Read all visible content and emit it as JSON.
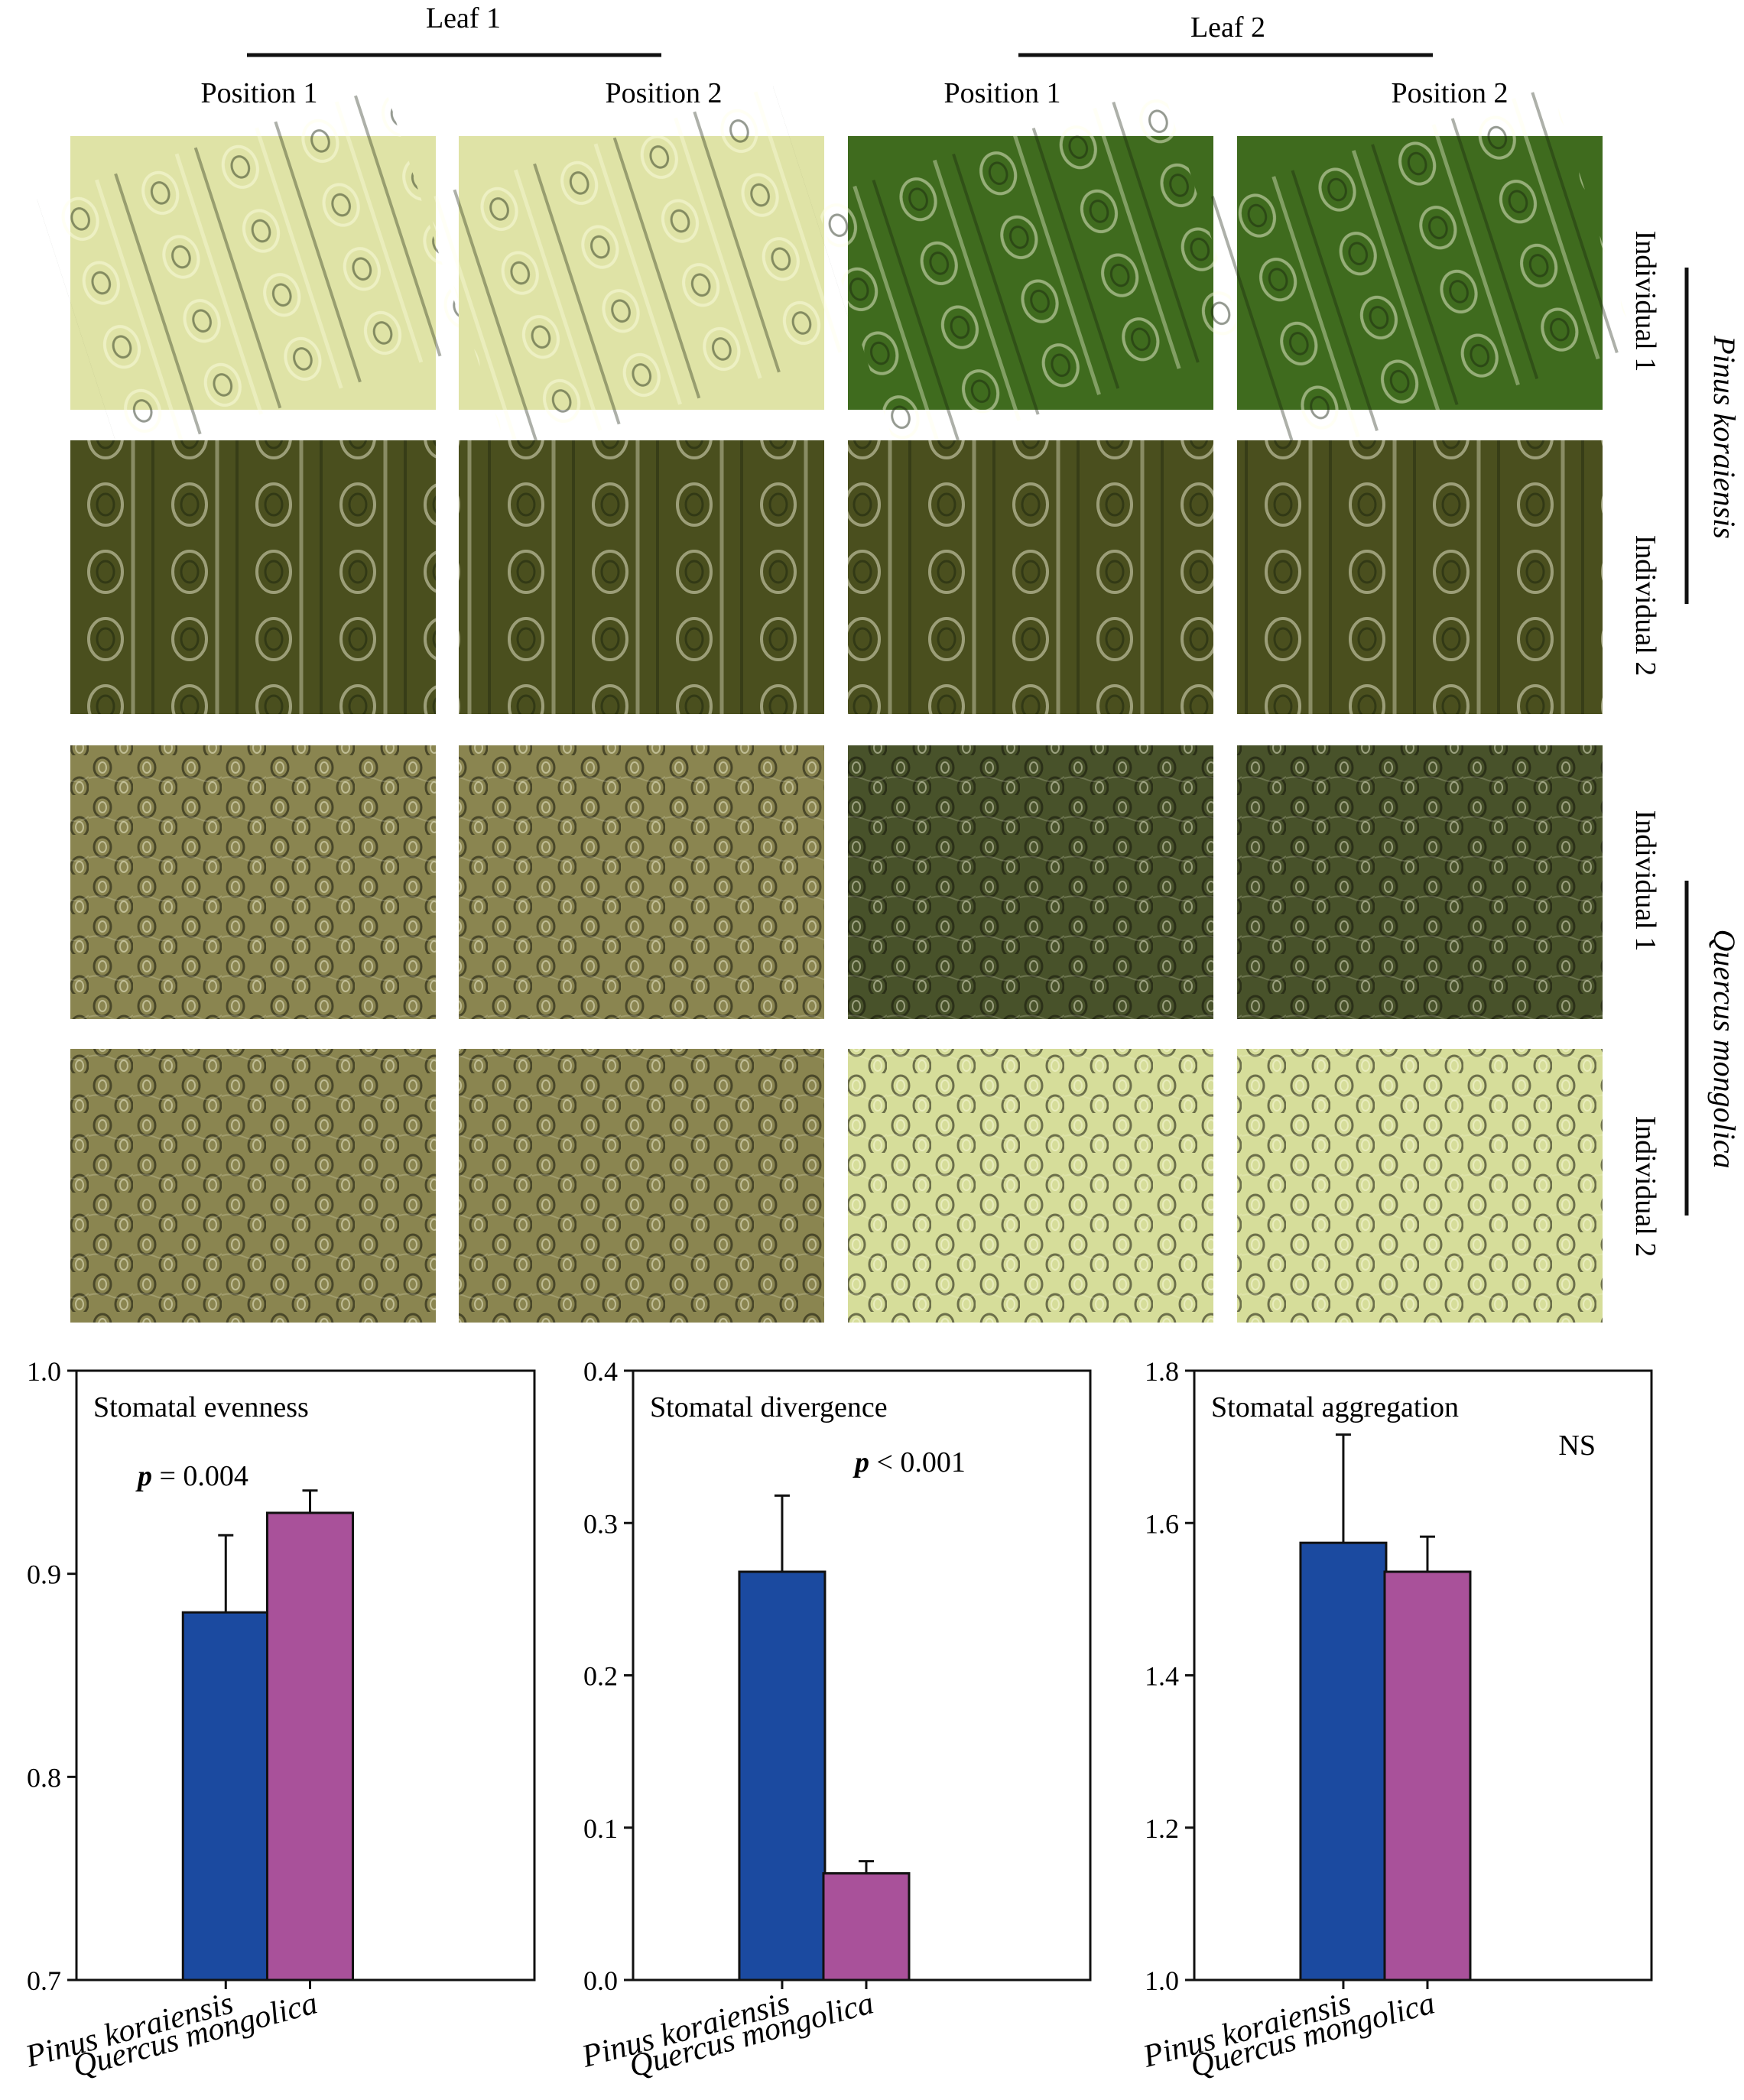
{
  "header": {
    "leaf_1": "Leaf 1",
    "leaf_2": "Leaf 2",
    "positions": [
      "Position 1",
      "Position 2",
      "Position 1",
      "Position 2"
    ]
  },
  "rows": [
    {
      "individual": "Individual 1",
      "tone": "pk-light"
    },
    {
      "individual": "Individual 2",
      "tone": "pk-dark"
    },
    {
      "individual": "Individual 1",
      "tone": "qm-dark"
    },
    {
      "individual": "Individual 2",
      "tone": "qm-light"
    }
  ],
  "micrograph_panels": [
    [
      "pale-yellow",
      "pale-yellow",
      "bright-green",
      "bright-green"
    ],
    [
      "olive-dark",
      "olive-dark",
      "olive-dark",
      "olive-dark"
    ],
    [
      "olive-grey",
      "olive-grey",
      "dark-green",
      "dark-green"
    ],
    [
      "olive-grey",
      "olive-grey",
      "pale-yellow-green",
      "pale-yellow-green"
    ]
  ],
  "species": {
    "group_1": "Pinus koraiensis",
    "group_2": "Quercus mongolica"
  },
  "colors": {
    "pinus": "#1b4aa0",
    "quercus": "#a9519a"
  },
  "chart_data": [
    {
      "type": "bar",
      "title": "Stomatal evenness",
      "annotation_bold": "p",
      "annotation_rest": " = 0.004",
      "categories": [
        "Pinus koraiensis",
        "Quercus mongolica"
      ],
      "values": [
        0.881,
        0.93
      ],
      "errors": [
        0.038,
        0.011
      ],
      "ylim": [
        0.7,
        1.0
      ],
      "yticks": [
        0.7,
        0.8,
        0.9,
        1.0
      ],
      "ytick_labels": [
        "0.7",
        "0.8",
        "0.9",
        "1.0"
      ]
    },
    {
      "type": "bar",
      "title": "Stomatal divergence",
      "annotation_bold": "p",
      "annotation_rest": " < 0.001",
      "categories": [
        "Pinus koraiensis",
        "Quercus mongolica"
      ],
      "values": [
        0.268,
        0.07
      ],
      "errors": [
        0.05,
        0.008
      ],
      "ylim": [
        0.0,
        0.4
      ],
      "yticks": [
        0.0,
        0.1,
        0.2,
        0.3,
        0.4
      ],
      "ytick_labels": [
        "0.0",
        "0.1",
        "0.2",
        "0.3",
        "0.4"
      ]
    },
    {
      "type": "bar",
      "title": "Stomatal aggregation",
      "annotation_bold": "",
      "annotation_rest": "NS",
      "categories": [
        "Pinus koraiensis",
        "Quercus mongolica"
      ],
      "values": [
        1.574,
        1.536
      ],
      "errors": [
        0.142,
        0.046
      ],
      "ylim": [
        1.0,
        1.8
      ],
      "yticks": [
        1.0,
        1.2,
        1.4,
        1.6,
        1.8
      ],
      "ytick_labels": [
        "1.0",
        "1.2",
        "1.4",
        "1.6",
        "1.8"
      ]
    }
  ]
}
